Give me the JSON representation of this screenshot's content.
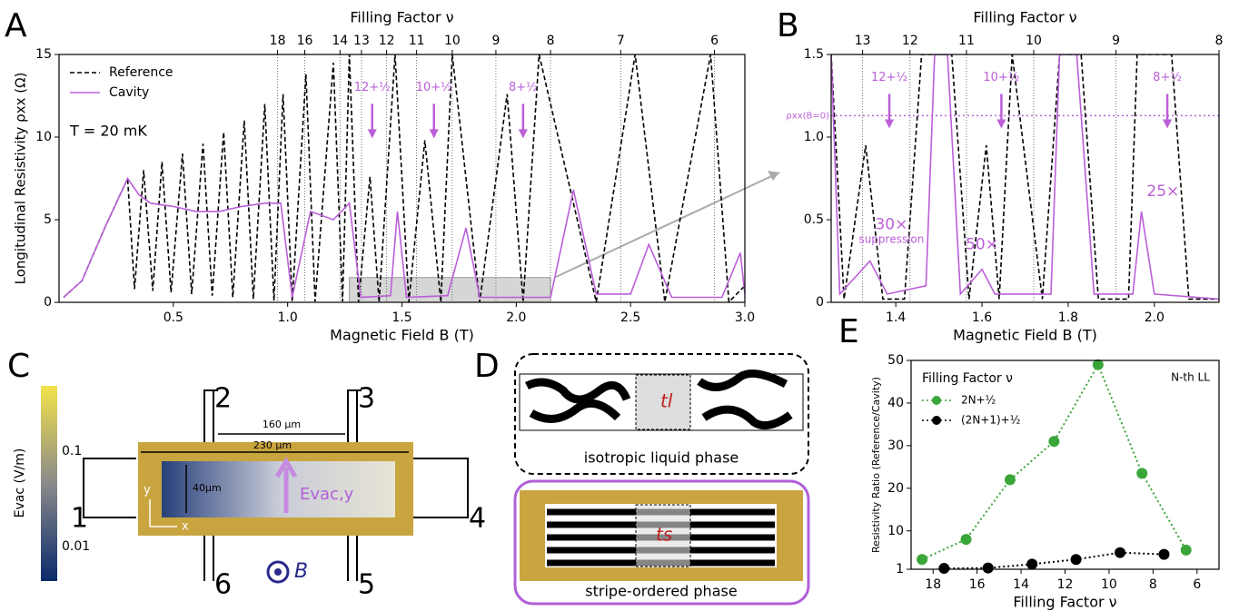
{
  "chart_data": [
    {
      "type": "line",
      "panel_label": "A",
      "x2_label": "Filling Factor ν",
      "xlabel": "Magnetic Field B (T)",
      "ylabel": "Longitudinal Resistivity ρxx (Ω)",
      "xlim": [
        0,
        3
      ],
      "xticks": [
        0.5,
        {
          "value": 1,
          "label": "1.0"
        },
        1.5,
        {
          "value": 2,
          "label": "2.0"
        },
        2.5,
        {
          "value": 3,
          "label": "3.0"
        }
      ],
      "ylim": [
        0,
        15
      ],
      "yticks": [
        0,
        5,
        10,
        15
      ],
      "x2ticks": [
        {
          "value": 0.956,
          "label": "18"
        },
        {
          "value": 1.075,
          "label": "16"
        },
        {
          "value": 1.229,
          "label": "14"
        },
        {
          "value": 1.323,
          "label": "13"
        },
        {
          "value": 1.433,
          "label": "12"
        },
        {
          "value": 1.564,
          "label": "11"
        },
        {
          "value": 1.72,
          "label": "10"
        },
        {
          "value": 1.911,
          "label": "9"
        },
        {
          "value": 2.15,
          "label": "8"
        },
        {
          "value": 2.457,
          "label": "7"
        },
        {
          "value": 2.867,
          "label": "6"
        }
      ],
      "legend_position": "upper left",
      "note": "T = 20 mK",
      "highlight": {
        "xlim": [
          1.27,
          2.15
        ],
        "ylim": [
          0,
          1.5
        ]
      },
      "series": [
        {
          "name": "Reference",
          "color": "#000000",
          "dashed": true,
          "x": [
            0.02,
            0.1,
            0.2,
            0.3,
            0.33,
            0.37,
            0.41,
            0.45,
            0.49,
            0.54,
            0.58,
            0.63,
            0.67,
            0.72,
            0.76,
            0.81,
            0.85,
            0.9,
            0.94,
            0.98,
            1.02,
            1.08,
            1.12,
            1.2,
            1.24,
            1.27,
            1.31,
            1.36,
            1.4,
            1.47,
            1.53,
            1.6,
            1.67,
            1.72,
            1.84,
            1.96,
            2.03,
            2.1,
            2.35,
            2.52,
            2.65,
            2.85,
            2.93,
            3.0
          ],
          "values": [
            0.3,
            1.3,
            4.5,
            7.5,
            0.8,
            8,
            0.7,
            8.5,
            0.6,
            9,
            0.5,
            9.6,
            0.4,
            10.3,
            0.3,
            11,
            0.2,
            12,
            0.1,
            12.6,
            0.05,
            13.8,
            0.05,
            14.5,
            0.05,
            15,
            0.02,
            7.6,
            0.02,
            15,
            0.02,
            9.8,
            0.02,
            15,
            0.02,
            12.6,
            0.02,
            15,
            0.02,
            15,
            0.02,
            15,
            0.02,
            1
          ]
        },
        {
          "name": "Cavity",
          "color": "#bb5fd8",
          "dashed": false,
          "x": [
            0.02,
            0.1,
            0.2,
            0.3,
            0.35,
            0.4,
            0.5,
            0.6,
            0.7,
            0.8,
            0.9,
            0.97,
            1.02,
            1.1,
            1.2,
            1.27,
            1.32,
            1.45,
            1.48,
            1.52,
            1.7,
            1.78,
            1.84,
            2.15,
            2.25,
            2.35,
            2.5,
            2.58,
            2.68,
            2.9,
            2.98,
            3.0
          ],
          "values": [
            0.3,
            1.3,
            4.5,
            7.5,
            6.5,
            6,
            5.8,
            5.5,
            5.5,
            5.8,
            6,
            6,
            0.3,
            5.5,
            5,
            6,
            0.3,
            0.4,
            5.5,
            0.3,
            0.4,
            4.5,
            0.3,
            0.3,
            6.8,
            0.5,
            0.5,
            3.5,
            0.3,
            0.3,
            3,
            0.5
          ]
        }
      ],
      "annotations": [
        {
          "text": "12+½",
          "x": 1.37,
          "y": 13,
          "arrow": true
        },
        {
          "text": "10+½",
          "x": 1.64,
          "y": 13,
          "arrow": true
        },
        {
          "text": "8+½",
          "x": 2.03,
          "y": 13,
          "arrow": true
        }
      ]
    },
    {
      "type": "line",
      "panel_label": "B",
      "x2_label": "Filling Factor ν",
      "xlabel": "Magnetic Field B (T)",
      "xlim": [
        1.25,
        2.15
      ],
      "xticks": [
        1.4,
        1.6,
        1.8,
        {
          "value": 2,
          "label": "2.0"
        }
      ],
      "ylim": [
        0,
        1.5
      ],
      "yticks": [
        0,
        0.5,
        {
          "value": 1,
          "label": "1.0"
        },
        1.5
      ],
      "x2ticks": [
        {
          "value": 1.323,
          "label": "13"
        },
        {
          "value": 1.433,
          "label": "12"
        },
        {
          "value": 1.564,
          "label": "11"
        },
        {
          "value": 1.72,
          "label": "10"
        },
        {
          "value": 1.911,
          "label": "9"
        },
        {
          "value": 2.15,
          "label": "8"
        }
      ],
      "hline": {
        "y": 1.13,
        "label": "ρxx(B=0)"
      },
      "series": [
        {
          "name": "Reference",
          "color": "#000000",
          "dashed": true,
          "x": [
            1.25,
            1.28,
            1.33,
            1.37,
            1.42,
            1.46,
            1.53,
            1.57,
            1.61,
            1.64,
            1.67,
            1.74,
            1.78,
            1.83,
            1.87,
            1.94,
            1.96,
            2.04,
            2.08,
            2.15
          ],
          "values": [
            1.5,
            0.02,
            0.95,
            0.02,
            0.02,
            1.5,
            1.5,
            0.02,
            0.95,
            0.02,
            1.5,
            0.02,
            1.5,
            1.5,
            0.02,
            0.02,
            1.5,
            1.5,
            0.02,
            0.02
          ]
        },
        {
          "name": "Cavity",
          "color": "#bb5fd8",
          "dashed": false,
          "x": [
            1.25,
            1.27,
            1.34,
            1.38,
            1.47,
            1.49,
            1.52,
            1.55,
            1.6,
            1.63,
            1.76,
            1.78,
            1.82,
            1.86,
            1.95,
            1.97,
            2.0,
            2.15
          ],
          "values": [
            1.5,
            0.05,
            0.25,
            0.05,
            0.1,
            1.5,
            1.5,
            0.05,
            0.2,
            0.05,
            0.05,
            1.5,
            1.5,
            0.05,
            0.05,
            0.55,
            0.05,
            0.02
          ]
        }
      ],
      "annotations": [
        {
          "text": "12+½",
          "x": 1.385,
          "y": 1.36,
          "arrow": true
        },
        {
          "text": "10+½",
          "x": 1.645,
          "y": 1.36,
          "arrow": true
        },
        {
          "text": "8+½",
          "x": 2.03,
          "y": 1.36,
          "arrow": true
        },
        {
          "text": "30×",
          "x": 1.39,
          "y": 0.47,
          "arrow": false
        },
        {
          "text": "suppression",
          "x": 1.39,
          "y": 0.38,
          "arrow": false
        },
        {
          "text": "50×",
          "x": 1.6,
          "y": 0.35,
          "arrow": false
        },
        {
          "text": "25×",
          "x": 2.02,
          "y": 0.67,
          "arrow": false
        }
      ]
    },
    {
      "type": "scatter-line",
      "panel_label": "E",
      "xlabel": "Filling Factor ν",
      "ylabel": "Resistivity Ratio (Reference/Cavity)",
      "xlim": [
        19,
        5
      ],
      "xticks": [
        18,
        16,
        14,
        12,
        10,
        8,
        6
      ],
      "ylim": [
        1,
        50
      ],
      "yticks": [
        1,
        10,
        20,
        30,
        40,
        50
      ],
      "legend_position": "upper left",
      "legend_title": "Filling Factor ν",
      "series": [
        {
          "name": "2N+½",
          "color": "#3aa63a",
          "x": [
            18.5,
            16.5,
            14.5,
            12.5,
            10.5,
            8.5,
            6.5
          ],
          "values": [
            3.3,
            8,
            22,
            31,
            49,
            23.5,
            5.5
          ]
        },
        {
          "name": "(2N+1)+½",
          "color": "#000000",
          "x": [
            17.5,
            15.5,
            13.5,
            11.5,
            9.5,
            7.5
          ],
          "values": [
            1.2,
            1.3,
            2.2,
            3.3,
            4.9,
            4.5
          ]
        }
      ],
      "annotations": [
        {
          "text": "N-th LL",
          "x": 6.3,
          "y": 46,
          "arrow": false
        }
      ]
    }
  ],
  "panel_c": {
    "label": "C",
    "colorbar_label": "Evac (V/m)",
    "colorbar_ticks": [
      "0.1",
      "0.01"
    ],
    "contacts": [
      "1",
      "2",
      "3",
      "4",
      "5",
      "6"
    ],
    "dim_inner": "160 µm",
    "dim_outer": "230 µm",
    "dim_height": "40µm",
    "field_label": "Evac,y",
    "b_label": "B",
    "x_axis": "x",
    "y_axis": "y"
  },
  "panel_d": {
    "label": "D",
    "top_caption": "isotropic liquid phase",
    "bottom_caption": "stripe-ordered phase",
    "t_liquid": "tl",
    "t_stripe": "ts"
  }
}
